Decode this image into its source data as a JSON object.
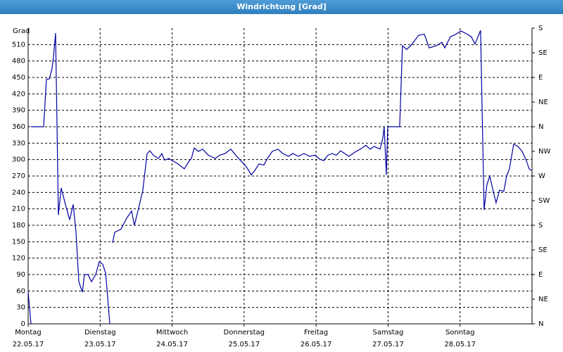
{
  "chart_data": {
    "type": "line",
    "title": "Windrichtung [Grad]",
    "y_label": "Grad",
    "color": "#0000a0",
    "grid": true,
    "xlim": [
      0,
      7
    ],
    "xticks": [
      {
        "value": 0,
        "label": "Montag",
        "date": "22.05.17"
      },
      {
        "value": 1,
        "label": "Dienstag",
        "date": "23.05.17"
      },
      {
        "value": 2,
        "label": "Mittwoch",
        "date": "24.05.17"
      },
      {
        "value": 3,
        "label": "Donnerstag",
        "date": "25.05.17"
      },
      {
        "value": 4,
        "label": "Freitag",
        "date": "26.05.17"
      },
      {
        "value": 5,
        "label": "Samstag",
        "date": "27.05.17"
      },
      {
        "value": 6,
        "label": "Sonntag",
        "date": "28.05.17"
      }
    ],
    "ylim": [
      0,
      540
    ],
    "yticks": [
      0,
      30,
      60,
      90,
      120,
      150,
      180,
      210,
      240,
      270,
      300,
      330,
      360,
      390,
      420,
      450,
      480,
      510
    ],
    "y2lim": [
      0,
      540
    ],
    "y2ticks": [
      {
        "value": 0,
        "label": "N"
      },
      {
        "value": 45,
        "label": "NE"
      },
      {
        "value": 90,
        "label": "E"
      },
      {
        "value": 135,
        "label": "SE"
      },
      {
        "value": 180,
        "label": "S"
      },
      {
        "value": 225,
        "label": "SW"
      },
      {
        "value": 270,
        "label": "W"
      },
      {
        "value": 315,
        "label": "NW"
      },
      {
        "value": 360,
        "label": "N"
      },
      {
        "value": 405,
        "label": "NE"
      },
      {
        "value": 450,
        "label": "E"
      },
      {
        "value": 495,
        "label": "SE"
      },
      {
        "value": 540,
        "label": "S"
      }
    ],
    "x": [
      0,
      0.039,
      null,
      0.039,
      0.215,
      0.254,
      0.293,
      0.332,
      0.352,
      0.381,
      0.42,
      0.459,
      0.518,
      0.577,
      0.626,
      0.665,
      0.704,
      0.753,
      0.782,
      0.831,
      0.88,
      0.938,
      0.987,
      1.036,
      1.075,
      1.095,
      1.134,
      null,
      1.173,
      1.202,
      1.29,
      1.369,
      1.437,
      1.476,
      1.525,
      1.593,
      1.652,
      1.691,
      1.74,
      1.808,
      1.857,
      1.896,
      1.955,
      2.004,
      2.072,
      2.17,
      2.229,
      2.268,
      2.307,
      2.366,
      2.424,
      2.502,
      2.6,
      2.659,
      2.737,
      2.815,
      2.884,
      2.952,
      3.011,
      3.05,
      3.099,
      3.148,
      3.206,
      3.275,
      3.324,
      3.392,
      3.47,
      3.539,
      3.617,
      3.675,
      3.754,
      3.832,
      3.91,
      3.988,
      4.047,
      4.106,
      4.164,
      4.223,
      4.282,
      4.34,
      4.399,
      4.457,
      4.545,
      4.614,
      4.692,
      4.751,
      4.809,
      4.888,
      4.927,
      4.946,
      4.976,
      4.995,
      5.161,
      5.2,
      5.259,
      5.327,
      5.425,
      5.503,
      5.572,
      5.67,
      5.748,
      5.787,
      5.865,
      5.943,
      6.012,
      6.1,
      6.158,
      6.207,
      6.285,
      6.334,
      6.373,
      6.413,
      6.452,
      6.5,
      6.549,
      6.608,
      6.647,
      6.686,
      6.745,
      6.804,
      6.862,
      6.921,
      6.96,
      6.99
    ],
    "values": [
      58,
      0,
      null,
      360,
      360,
      447,
      447,
      466,
      488,
      531,
      199,
      248,
      218,
      190,
      218,
      167,
      77,
      58,
      90,
      90,
      77,
      90,
      113,
      109,
      93,
      64,
      0,
      null,
      148,
      167,
      173,
      193,
      206,
      180,
      206,
      244,
      311,
      316,
      308,
      302,
      311,
      299,
      302,
      298,
      293,
      283,
      296,
      302,
      321,
      315,
      319,
      308,
      302,
      308,
      311,
      319,
      308,
      298,
      290,
      283,
      272,
      280,
      292,
      290,
      302,
      315,
      319,
      311,
      306,
      311,
      306,
      311,
      306,
      308,
      301,
      298,
      308,
      311,
      308,
      316,
      311,
      306,
      314,
      319,
      326,
      319,
      324,
      319,
      339,
      360,
      272,
      360,
      360,
      508,
      501,
      510,
      527,
      529,
      504,
      508,
      514,
      504,
      524,
      529,
      535,
      529,
      524,
      511,
      536,
      208,
      254,
      270,
      247,
      221,
      244,
      242,
      270,
      283,
      328,
      324,
      315,
      298,
      283,
      280
    ]
  }
}
